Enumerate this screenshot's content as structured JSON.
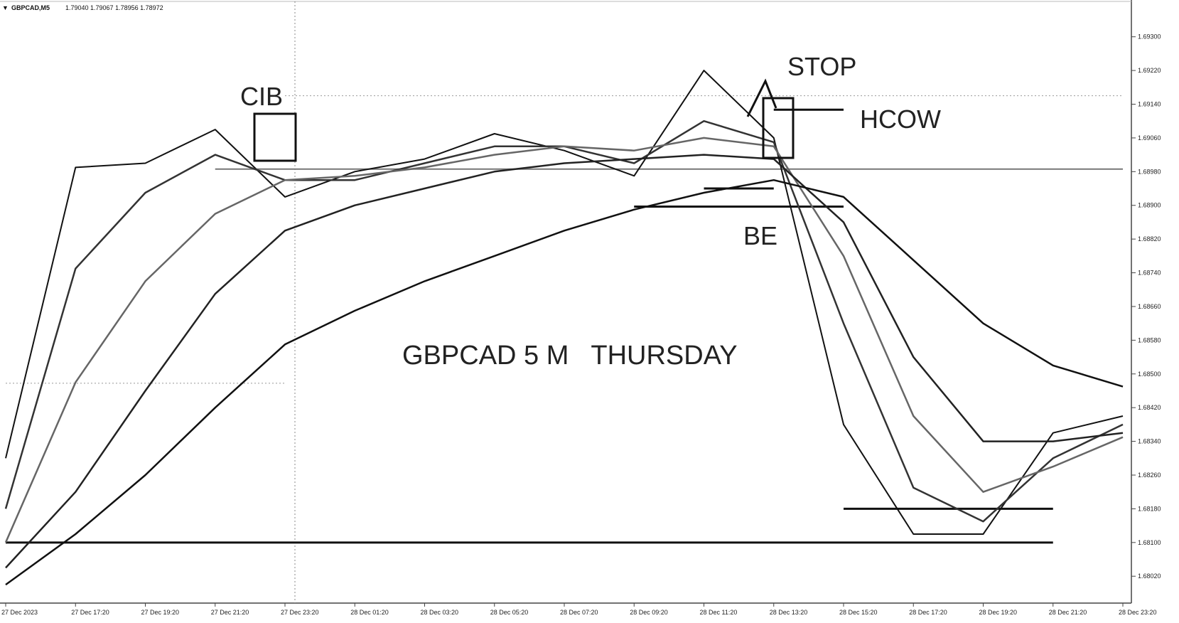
{
  "header": {
    "symbol": "GBPCAD,M5",
    "ohlc": "1.79040 1.79067 1.78956 1.78972"
  },
  "chart_data": {
    "type": "line",
    "instrument": "GBPCAD",
    "timeframe": "M5",
    "price_axis": {
      "ylim": [
        1.6799,
        1.6934
      ],
      "ticks": [
        "1.69300",
        "1.69220",
        "1.69140",
        "1.69060",
        "1.68980",
        "1.68900",
        "1.68820",
        "1.68740",
        "1.68660",
        "1.68580",
        "1.68500",
        "1.68420",
        "1.68340",
        "1.68260",
        "1.68180",
        "1.68100",
        "1.68020"
      ]
    },
    "time_axis": {
      "labels": [
        "27 Dec 2023",
        "27 Dec 17:20",
        "27 Dec 19:20",
        "27 Dec 21:20",
        "27 Dec 23:20",
        "28 Dec 01:20",
        "28 Dec 03:20",
        "28 Dec 05:20",
        "28 Dec 07:20",
        "28 Dec 09:20",
        "28 Dec 11:20",
        "28 Dec 13:20",
        "28 Dec 15:20",
        "28 Dec 17:20",
        "28 Dec 19:20",
        "28 Dec 21:20",
        "28 Dec 23:20"
      ],
      "period_separator_at": "27 Dec 23:20"
    },
    "series": [
      {
        "color": "#111111",
        "x": [
          "27 Dec 2023",
          "27 Dec 17:20",
          "27 Dec 19:20",
          "27 Dec 21:20",
          "27 Dec 23:20",
          "28 Dec 01:20",
          "28 Dec 03:20",
          "28 Dec 05:20",
          "28 Dec 07:20",
          "28 Dec 09:20",
          "28 Dec 11:20",
          "28 Dec 13:20",
          "28 Dec 15:20",
          "28 Dec 17:20",
          "28 Dec 19:20",
          "28 Dec 21:20",
          "28 Dec 23:20"
        ],
        "values": [
          1.683,
          1.6899,
          1.69,
          1.6908,
          1.6892,
          1.6898,
          1.6901,
          1.6907,
          1.6903,
          1.6897,
          1.6922,
          1.6906,
          1.6838,
          1.6812,
          1.6812,
          1.6836,
          1.684
        ]
      },
      {
        "color": "#333333",
        "x": [
          "27 Dec 2023",
          "27 Dec 17:20",
          "27 Dec 19:20",
          "27 Dec 21:20",
          "27 Dec 23:20",
          "28 Dec 01:20",
          "28 Dec 03:20",
          "28 Dec 05:20",
          "28 Dec 07:20",
          "28 Dec 09:20",
          "28 Dec 11:20",
          "28 Dec 13:20",
          "28 Dec 15:20",
          "28 Dec 17:20",
          "28 Dec 19:20",
          "28 Dec 21:20",
          "28 Dec 23:20"
        ],
        "values": [
          1.6818,
          1.6875,
          1.6893,
          1.6902,
          1.6896,
          1.6896,
          1.69,
          1.6904,
          1.6904,
          1.69,
          1.691,
          1.6905,
          1.6862,
          1.6823,
          1.6815,
          1.683,
          1.6838
        ]
      },
      {
        "color": "#666666",
        "x": [
          "27 Dec 2023",
          "27 Dec 17:20",
          "27 Dec 19:20",
          "27 Dec 21:20",
          "27 Dec 23:20",
          "28 Dec 01:20",
          "28 Dec 03:20",
          "28 Dec 05:20",
          "28 Dec 07:20",
          "28 Dec 09:20",
          "28 Dec 11:20",
          "28 Dec 13:20",
          "28 Dec 15:20",
          "28 Dec 17:20",
          "28 Dec 19:20",
          "28 Dec 21:20",
          "28 Dec 23:20"
        ],
        "values": [
          1.681,
          1.6848,
          1.6872,
          1.6888,
          1.6896,
          1.6897,
          1.6899,
          1.6902,
          1.6904,
          1.6903,
          1.6906,
          1.6904,
          1.6878,
          1.684,
          1.6822,
          1.6828,
          1.6835
        ]
      },
      {
        "color": "#222222",
        "x": [
          "27 Dec 2023",
          "27 Dec 17:20",
          "27 Dec 19:20",
          "27 Dec 21:20",
          "27 Dec 23:20",
          "28 Dec 01:20",
          "28 Dec 03:20",
          "28 Dec 05:20",
          "28 Dec 07:20",
          "28 Dec 09:20",
          "28 Dec 11:20",
          "28 Dec 13:20",
          "28 Dec 15:20",
          "28 Dec 17:20",
          "28 Dec 19:20",
          "28 Dec 21:20",
          "28 Dec 23:20"
        ],
        "values": [
          1.6804,
          1.6822,
          1.6846,
          1.6869,
          1.6884,
          1.689,
          1.6894,
          1.6898,
          1.69,
          1.6901,
          1.6902,
          1.6901,
          1.6886,
          1.6854,
          1.6834,
          1.6834,
          1.6836
        ]
      },
      {
        "color": "#111111",
        "x": [
          "27 Dec 2023",
          "27 Dec 17:20",
          "27 Dec 19:20",
          "27 Dec 21:20",
          "27 Dec 23:20",
          "28 Dec 01:20",
          "28 Dec 03:20",
          "28 Dec 05:20",
          "28 Dec 07:20",
          "28 Dec 09:20",
          "28 Dec 11:20",
          "28 Dec 13:20",
          "28 Dec 15:20",
          "28 Dec 17:20",
          "28 Dec 19:20",
          "28 Dec 21:20",
          "28 Dec 23:20"
        ],
        "values": [
          1.68,
          1.6812,
          1.6826,
          1.6842,
          1.6857,
          1.6865,
          1.6872,
          1.6878,
          1.6884,
          1.6889,
          1.6893,
          1.6896,
          1.6892,
          1.6877,
          1.6862,
          1.6852,
          1.6847
        ]
      }
    ],
    "horizontal_lines": [
      {
        "price": 1.68986,
        "from": "27 Dec 21:20",
        "to": "28 Dec 23:20",
        "style": "solid-gray"
      },
      {
        "price": 1.681,
        "from": "27 Dec 2023",
        "to": "28 Dec 21:20",
        "style": "solid-black"
      },
      {
        "price": 1.6818,
        "from": "28 Dec 15:20",
        "to": "28 Dec 21:20",
        "style": "solid-black"
      },
      {
        "price": 1.68897,
        "from": "28 Dec 09:20",
        "to": "28 Dec 15:20",
        "style": "solid-black"
      },
      {
        "price": 1.6894,
        "from": "28 Dec 11:20",
        "to": "28 Dec 13:20",
        "style": "solid-black"
      },
      {
        "price": 1.69127,
        "from": "28 Dec 13:20",
        "to": "28 Dec 15:20",
        "style": "solid-black"
      },
      {
        "price": 1.6916,
        "from": "27 Dec 23:20",
        "to": "28 Dec 23:20",
        "style": "dotted-gray"
      },
      {
        "price": 1.68478,
        "from": "27 Dec 2023",
        "to": "27 Dec 23:20",
        "style": "dotted-gray"
      }
    ],
    "annotations": [
      {
        "text": "CIB",
        "at": "27 Dec 21:20",
        "price": 1.6913
      },
      {
        "text": "STOP",
        "at": "28 Dec 13:20",
        "price": 1.6922
      },
      {
        "text": "HCOW",
        "at": "28 Dec 13:20",
        "price": 1.6906
      },
      {
        "text": "BE",
        "at": "28 Dec 11:20",
        "price": 1.6882
      },
      {
        "text": "GBPCAD 5 M   THURSDAY",
        "at": "28 Dec 05:20",
        "price": 1.6856
      }
    ],
    "grid": false,
    "legend": "none"
  }
}
